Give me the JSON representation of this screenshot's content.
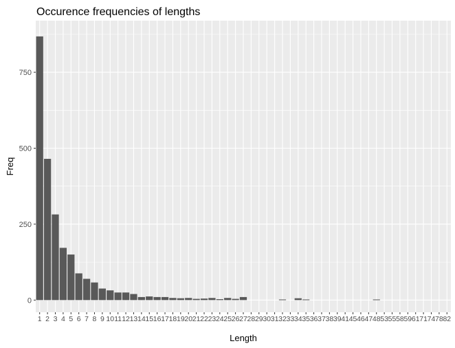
{
  "chart_data": {
    "type": "bar",
    "title": "Occurence frequencies of lengths",
    "xlabel": "Length",
    "ylabel": "Freq",
    "ylim": [
      -40,
      920
    ],
    "yticks": [
      0,
      250,
      500,
      750
    ],
    "grid": true,
    "categories": [
      "1",
      "2",
      "3",
      "4",
      "5",
      "6",
      "7",
      "8",
      "9",
      "10",
      "11",
      "12",
      "13",
      "14",
      "15",
      "16",
      "17",
      "18",
      "19",
      "20",
      "21",
      "22",
      "23",
      "24",
      "25",
      "26",
      "27",
      "28",
      "29",
      "30",
      "31",
      "32",
      "33",
      "34",
      "35",
      "36",
      "37",
      "38",
      "39",
      "41",
      "45",
      "46",
      "47",
      "48",
      "53",
      "55",
      "58",
      "59",
      "61",
      "71",
      "74",
      "78",
      "82"
    ],
    "values": [
      868,
      465,
      282,
      172,
      150,
      88,
      70,
      58,
      38,
      32,
      25,
      25,
      20,
      10,
      12,
      10,
      10,
      7,
      6,
      7,
      4,
      5,
      7,
      3,
      7,
      4,
      10,
      0,
      0,
      0,
      0,
      2,
      0,
      6,
      2,
      0,
      0,
      0,
      0,
      0,
      0,
      0,
      0,
      2,
      0,
      0,
      0,
      0,
      0,
      0,
      0,
      0,
      0
    ],
    "colors": {
      "bar": "#595959",
      "panel": "#ebebeb",
      "grid": "#ffffff"
    }
  }
}
